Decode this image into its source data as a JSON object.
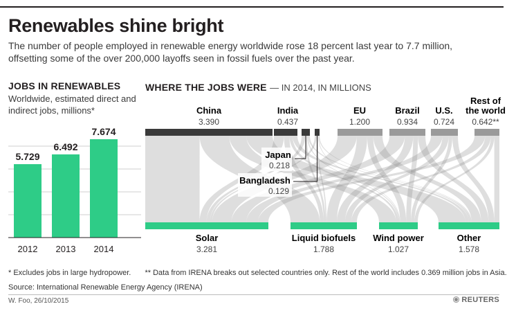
{
  "headline": "Renewables shine bright",
  "dek": "The number of people employed in renewable energy worldwide rose 18 percent last year to 7.7 million, offsetting some of the over 200,000 layoffs seen in fossil fuels over the past year.",
  "left_panel": {
    "title": "JOBS IN RENEWABLES",
    "subtitle": "Worldwide, estimated direct and indirect jobs, millions*"
  },
  "right_panel": {
    "title": "WHERE THE JOBS WERE",
    "subtitle": "— IN 2014, IN MILLIONS"
  },
  "colors": {
    "bar": "#2ecc87",
    "dark": "#3a3a3a",
    "source_bar": "#9a9a9a",
    "flow": "#c4c4c4"
  },
  "chart_data": [
    {
      "type": "bar",
      "title": "JOBS IN RENEWABLES",
      "categories": [
        "2012",
        "2013",
        "2014"
      ],
      "values": [
        5.729,
        6.492,
        7.674
      ],
      "value_labels": [
        "5.729",
        "6.492",
        "7.674"
      ],
      "ylim": [
        0,
        7.674
      ],
      "grid": true
    },
    {
      "type": "sankey",
      "title": "WHERE THE JOBS WERE",
      "sources": [
        {
          "name": "China",
          "value": 3.39,
          "label": "3.390"
        },
        {
          "name": "India",
          "value": 0.437,
          "label": "0.437"
        },
        {
          "name": "Japan",
          "value": 0.218,
          "label": "0.218"
        },
        {
          "name": "Bangladesh",
          "value": 0.129,
          "label": "0.129"
        },
        {
          "name": "EU",
          "value": 1.2,
          "label": "1.200"
        },
        {
          "name": "Brazil",
          "value": 0.934,
          "label": "0.934"
        },
        {
          "name": "U.S.",
          "value": 0.724,
          "label": "0.724"
        },
        {
          "name": "Rest of the world",
          "name_lines": [
            "Rest of",
            "the world"
          ],
          "value": 0.642,
          "label": "0.642**"
        }
      ],
      "targets": [
        {
          "name": "Solar",
          "value": 3.281,
          "label": "3.281"
        },
        {
          "name": "Liquid biofuels",
          "value": 1.788,
          "label": "1.788"
        },
        {
          "name": "Wind power",
          "value": 1.027,
          "label": "1.027"
        },
        {
          "name": "Other",
          "value": 1.578,
          "label": "1.578"
        }
      ]
    }
  ],
  "footnotes": {
    "note1": "* Excludes jobs in large hydropower.",
    "note2": "** Data from IRENA breaks out selected countries only. Rest of the world includes 0.369 million jobs in Asia.",
    "source": "Source: International Renewable Energy Agency (IRENA)"
  },
  "credit": "W. Foo, 26/10/2015",
  "logo": "REUTERS"
}
